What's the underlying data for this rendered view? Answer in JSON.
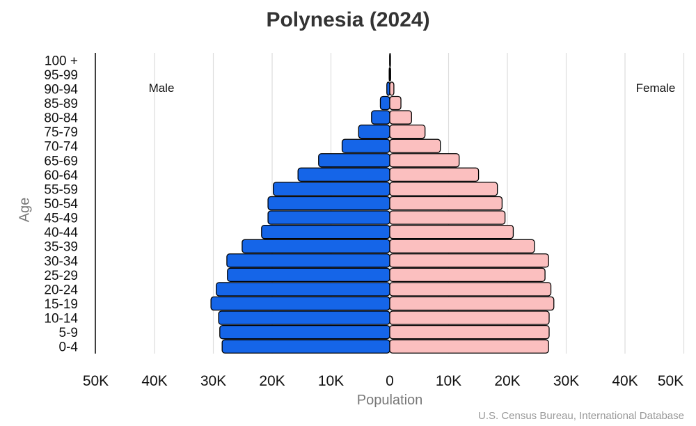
{
  "chart_data": {
    "type": "bar",
    "title": "Polynesia (2024)",
    "xlabel": "Population",
    "ylabel": "Age",
    "source": "U.S. Census Bureau, International Database",
    "side_labels": {
      "left": "Male",
      "right": "Female"
    },
    "categories": [
      "0-4",
      "5-9",
      "10-14",
      "15-19",
      "20-24",
      "25-29",
      "30-34",
      "35-39",
      "40-44",
      "45-49",
      "50-54",
      "55-59",
      "60-64",
      "65-69",
      "70-74",
      "75-79",
      "80-84",
      "85-89",
      "90-94",
      "95-99",
      "100 +"
    ],
    "series": [
      {
        "name": "Male",
        "color": "#1565e8",
        "values": [
          28500,
          28900,
          29100,
          30400,
          29500,
          27600,
          27700,
          25100,
          21800,
          20700,
          20700,
          19800,
          15600,
          12100,
          8100,
          5300,
          3100,
          1600,
          500,
          100,
          20
        ]
      },
      {
        "name": "Female",
        "color": "#fbbfbf",
        "values": [
          27000,
          27100,
          27100,
          27900,
          27400,
          26400,
          27000,
          24600,
          21000,
          19600,
          19100,
          18300,
          15100,
          11800,
          8600,
          6000,
          3700,
          1900,
          700,
          150,
          30
        ]
      }
    ],
    "xlim": [
      -50000,
      50000
    ],
    "xticks": [
      -50000,
      -40000,
      -30000,
      -20000,
      -10000,
      0,
      10000,
      20000,
      30000,
      40000,
      50000
    ],
    "xtick_labels": [
      "50K",
      "40K",
      "30K",
      "20K",
      "10K",
      "0",
      "10K",
      "20K",
      "30K",
      "40K",
      "50K"
    ],
    "grid": true,
    "bar_outline_color": "#000000",
    "grid_color": "#dddddd"
  }
}
